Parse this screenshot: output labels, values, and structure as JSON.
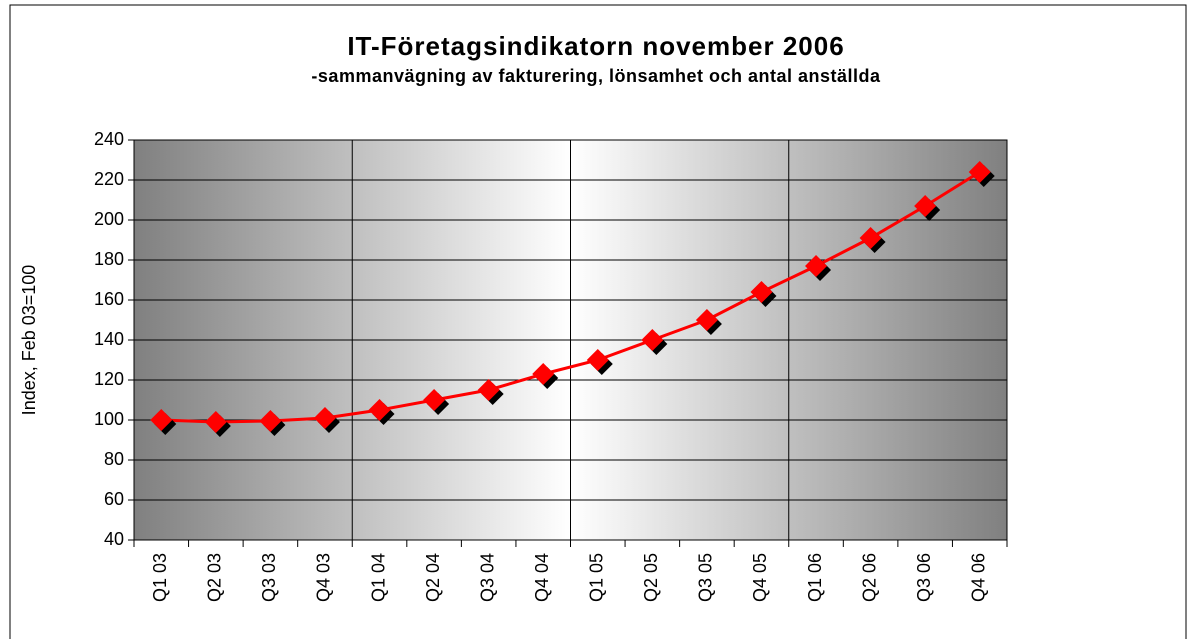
{
  "chart_data": {
    "type": "line",
    "title": "IT-Företagsindikatorn november 2006",
    "subtitle": "-sammanvägning av fakturering, lönsamhet och antal anställda",
    "y_label": "Index, Feb 03=100",
    "categories": [
      "Q1 03",
      "Q2 03",
      "Q3 03",
      "Q4 03",
      "Q1 04",
      "Q2 04",
      "Q3 04",
      "Q4 04",
      "Q1 05",
      "Q2 05",
      "Q3 05",
      "Q4 05",
      "Q1 06",
      "Q2 06",
      "Q3 06",
      "Q4 06"
    ],
    "values": [
      100,
      99,
      99.5,
      101,
      105,
      110,
      115,
      123,
      130,
      140,
      150,
      164,
      177,
      191,
      207,
      224
    ],
    "color": "#ff0000",
    "ylim": [
      40,
      240
    ],
    "yticks": [
      40,
      60,
      80,
      100,
      120,
      140,
      160,
      180,
      200,
      220,
      240
    ],
    "grid": true
  }
}
